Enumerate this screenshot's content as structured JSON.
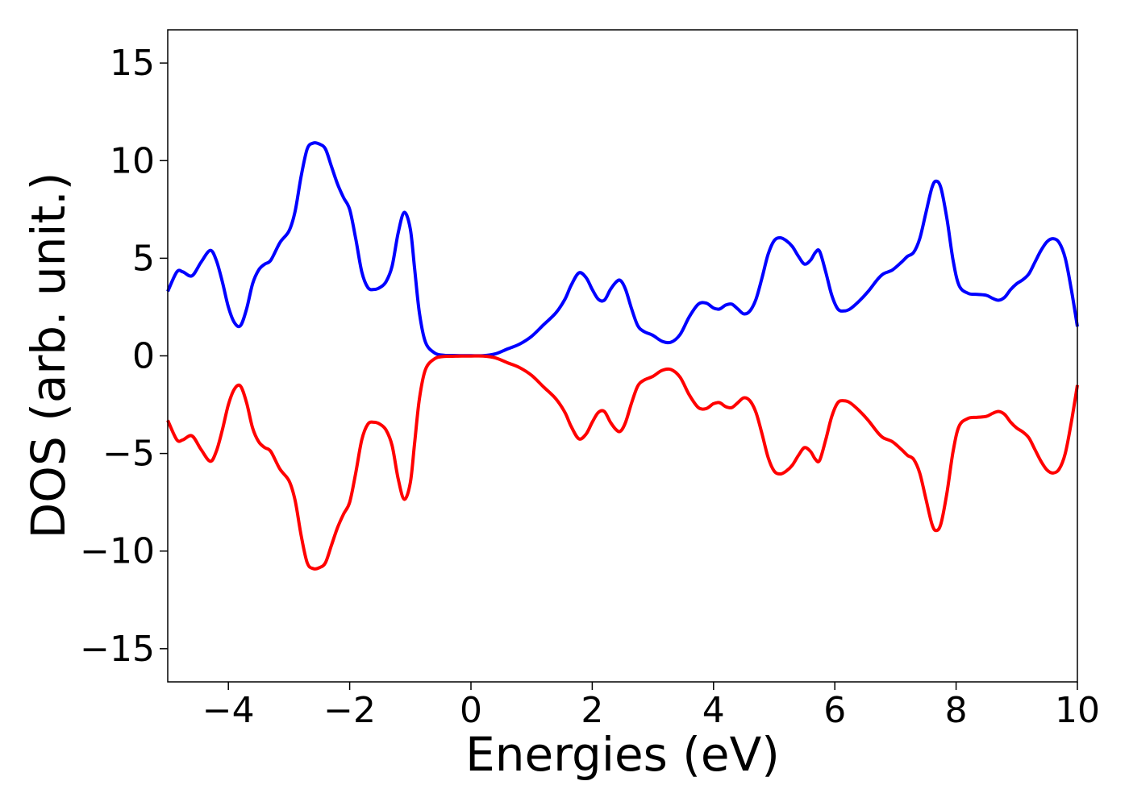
{
  "chart_data": {
    "type": "line",
    "title": "",
    "xlabel": "Energies (eV)",
    "ylabel": "DOS (arb. unit.)",
    "xlim": [
      -5,
      10
    ],
    "ylim": [
      -16.7,
      16.7
    ],
    "grid": false,
    "legend": "none",
    "xticks": [
      -4,
      -2,
      0,
      2,
      4,
      6,
      8,
      10
    ],
    "xtick_labels": [
      "−4",
      "−2",
      "0",
      "2",
      "4",
      "6",
      "8",
      "10"
    ],
    "yticks": [
      -15,
      -10,
      -5,
      0,
      5,
      10,
      15
    ],
    "ytick_labels": [
      "−15",
      "−10",
      "−5",
      "0",
      "5",
      "10",
      "15"
    ],
    "series": [
      {
        "color": "#0000ff",
        "x": [
          -5.0,
          -4.85,
          -4.75,
          -4.6,
          -4.45,
          -4.3,
          -4.2,
          -4.1,
          -4.0,
          -3.9,
          -3.8,
          -3.7,
          -3.6,
          -3.5,
          -3.4,
          -3.3,
          -3.15,
          -3.0,
          -2.9,
          -2.8,
          -2.7,
          -2.6,
          -2.5,
          -2.4,
          -2.3,
          -2.2,
          -2.1,
          -2.0,
          -1.9,
          -1.8,
          -1.7,
          -1.6,
          -1.5,
          -1.4,
          -1.3,
          -1.2,
          -1.1,
          -1.0,
          -0.93,
          -0.85,
          -0.75,
          -0.6,
          -0.45,
          -0.3,
          -0.15,
          0.0,
          0.2,
          0.4,
          0.6,
          0.8,
          1.0,
          1.2,
          1.4,
          1.55,
          1.65,
          1.78,
          1.9,
          2.0,
          2.1,
          2.2,
          2.3,
          2.4,
          2.47,
          2.55,
          2.65,
          2.75,
          2.85,
          3.0,
          3.15,
          3.3,
          3.45,
          3.6,
          3.75,
          3.88,
          4.0,
          4.1,
          4.2,
          4.3,
          4.4,
          4.5,
          4.6,
          4.7,
          4.8,
          4.9,
          5.0,
          5.1,
          5.2,
          5.3,
          5.4,
          5.5,
          5.6,
          5.68,
          5.75,
          5.85,
          5.95,
          6.05,
          6.15,
          6.25,
          6.4,
          6.55,
          6.7,
          6.8,
          6.95,
          7.1,
          7.2,
          7.3,
          7.4,
          7.5,
          7.6,
          7.67,
          7.75,
          7.85,
          7.95,
          8.05,
          8.2,
          8.35,
          8.5,
          8.6,
          8.7,
          8.8,
          8.9,
          9.0,
          9.1,
          9.2,
          9.3,
          9.4,
          9.5,
          9.6,
          9.7,
          9.8,
          9.9,
          10.0
        ],
        "y": [
          3.3,
          4.3,
          4.3,
          4.1,
          4.8,
          5.4,
          4.9,
          3.8,
          2.5,
          1.7,
          1.55,
          2.4,
          3.7,
          4.4,
          4.7,
          4.9,
          5.8,
          6.4,
          7.4,
          9.2,
          10.6,
          10.9,
          10.85,
          10.6,
          9.7,
          8.8,
          8.1,
          7.5,
          6.0,
          4.3,
          3.5,
          3.4,
          3.5,
          3.8,
          4.6,
          6.3,
          7.35,
          6.5,
          4.5,
          2.2,
          0.7,
          0.15,
          0.03,
          0.02,
          0.01,
          0.01,
          0.01,
          0.1,
          0.35,
          0.6,
          1.0,
          1.6,
          2.2,
          2.9,
          3.6,
          4.25,
          4.0,
          3.4,
          2.9,
          2.85,
          3.4,
          3.8,
          3.85,
          3.4,
          2.4,
          1.55,
          1.25,
          1.05,
          0.75,
          0.7,
          1.1,
          2.0,
          2.65,
          2.7,
          2.45,
          2.4,
          2.6,
          2.65,
          2.4,
          2.15,
          2.3,
          2.9,
          4.0,
          5.2,
          5.9,
          6.05,
          5.9,
          5.6,
          5.1,
          4.7,
          4.9,
          5.3,
          5.35,
          4.3,
          3.1,
          2.4,
          2.3,
          2.4,
          2.8,
          3.3,
          3.9,
          4.2,
          4.4,
          4.8,
          5.1,
          5.3,
          6.0,
          7.3,
          8.6,
          8.95,
          8.6,
          7.0,
          4.9,
          3.6,
          3.2,
          3.15,
          3.1,
          2.95,
          2.85,
          3.0,
          3.4,
          3.7,
          3.9,
          4.2,
          4.8,
          5.4,
          5.85,
          6.0,
          5.8,
          5.0,
          3.4,
          1.5
        ]
      },
      {
        "color": "#ff0000",
        "x": [
          -5.0,
          -4.85,
          -4.75,
          -4.6,
          -4.45,
          -4.3,
          -4.2,
          -4.1,
          -4.0,
          -3.9,
          -3.8,
          -3.7,
          -3.6,
          -3.5,
          -3.4,
          -3.3,
          -3.15,
          -3.0,
          -2.9,
          -2.8,
          -2.7,
          -2.6,
          -2.5,
          -2.4,
          -2.3,
          -2.2,
          -2.1,
          -2.0,
          -1.9,
          -1.8,
          -1.7,
          -1.6,
          -1.5,
          -1.4,
          -1.3,
          -1.2,
          -1.1,
          -1.0,
          -0.93,
          -0.85,
          -0.75,
          -0.6,
          -0.45,
          -0.3,
          -0.15,
          0.0,
          0.2,
          0.4,
          0.6,
          0.8,
          1.0,
          1.2,
          1.4,
          1.55,
          1.65,
          1.78,
          1.9,
          2.0,
          2.1,
          2.2,
          2.3,
          2.4,
          2.47,
          2.55,
          2.65,
          2.75,
          2.85,
          3.0,
          3.15,
          3.3,
          3.45,
          3.6,
          3.75,
          3.88,
          4.0,
          4.1,
          4.2,
          4.3,
          4.4,
          4.5,
          4.6,
          4.7,
          4.8,
          4.9,
          5.0,
          5.1,
          5.2,
          5.3,
          5.4,
          5.5,
          5.6,
          5.68,
          5.75,
          5.85,
          5.95,
          6.05,
          6.15,
          6.25,
          6.4,
          6.55,
          6.7,
          6.8,
          6.95,
          7.1,
          7.2,
          7.3,
          7.4,
          7.5,
          7.6,
          7.67,
          7.75,
          7.85,
          7.95,
          8.05,
          8.2,
          8.35,
          8.5,
          8.6,
          8.7,
          8.8,
          8.9,
          9.0,
          9.1,
          9.2,
          9.3,
          9.4,
          9.5,
          9.6,
          9.7,
          9.8,
          9.9,
          10.0
        ],
        "y": [
          -3.3,
          -4.3,
          -4.3,
          -4.1,
          -4.8,
          -5.4,
          -4.9,
          -3.8,
          -2.5,
          -1.7,
          -1.55,
          -2.4,
          -3.7,
          -4.4,
          -4.7,
          -4.9,
          -5.8,
          -6.4,
          -7.4,
          -9.2,
          -10.6,
          -10.9,
          -10.85,
          -10.6,
          -9.7,
          -8.8,
          -8.1,
          -7.5,
          -6.0,
          -4.3,
          -3.5,
          -3.4,
          -3.5,
          -3.8,
          -4.6,
          -6.3,
          -7.35,
          -6.5,
          -4.5,
          -2.2,
          -0.7,
          -0.15,
          -0.03,
          -0.02,
          -0.01,
          -0.01,
          -0.01,
          -0.1,
          -0.35,
          -0.6,
          -1.0,
          -1.6,
          -2.2,
          -2.9,
          -3.6,
          -4.25,
          -4.0,
          -3.4,
          -2.9,
          -2.85,
          -3.4,
          -3.8,
          -3.85,
          -3.4,
          -2.4,
          -1.55,
          -1.25,
          -1.05,
          -0.75,
          -0.7,
          -1.1,
          -2.0,
          -2.65,
          -2.7,
          -2.45,
          -2.4,
          -2.6,
          -2.65,
          -2.4,
          -2.15,
          -2.3,
          -2.9,
          -4.0,
          -5.2,
          -5.9,
          -6.05,
          -5.9,
          -5.6,
          -5.1,
          -4.7,
          -4.9,
          -5.3,
          -5.35,
          -4.3,
          -3.1,
          -2.4,
          -2.3,
          -2.4,
          -2.8,
          -3.3,
          -3.9,
          -4.2,
          -4.4,
          -4.8,
          -5.1,
          -5.3,
          -6.0,
          -7.3,
          -8.6,
          -8.95,
          -8.6,
          -7.0,
          -4.9,
          -3.6,
          -3.2,
          -3.15,
          -3.1,
          -2.95,
          -2.85,
          -3.0,
          -3.4,
          -3.7,
          -3.9,
          -4.2,
          -4.8,
          -5.4,
          -5.85,
          -6.0,
          -5.8,
          -5.0,
          -3.4,
          -1.5
        ]
      }
    ]
  }
}
